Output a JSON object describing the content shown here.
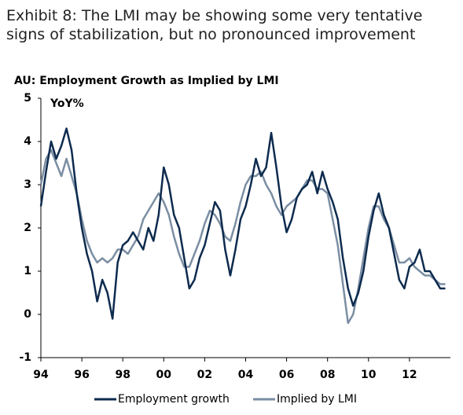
{
  "chart_data": {
    "type": "line",
    "exhibit": "Exhibit 8: The LMI may be showing some very tentative signs of stabilization, but no pronounced improvement",
    "title": "AU: Employment Growth as Implied by LMI",
    "ylabel": "YoY%",
    "x": [
      1994.0,
      1994.25,
      1994.5,
      1994.75,
      1995.0,
      1995.25,
      1995.5,
      1995.75,
      1996.0,
      1996.25,
      1996.5,
      1996.75,
      1997.0,
      1997.25,
      1997.5,
      1997.75,
      1998.0,
      1998.25,
      1998.5,
      1998.75,
      1999.0,
      1999.25,
      1999.5,
      1999.75,
      2000.0,
      2000.25,
      2000.5,
      2000.75,
      2001.0,
      2001.25,
      2001.5,
      2001.75,
      2002.0,
      2002.25,
      2002.5,
      2002.75,
      2003.0,
      2003.25,
      2003.5,
      2003.75,
      2004.0,
      2004.25,
      2004.5,
      2004.75,
      2005.0,
      2005.25,
      2005.5,
      2005.75,
      2006.0,
      2006.25,
      2006.5,
      2006.75,
      2007.0,
      2007.25,
      2007.5,
      2007.75,
      2008.0,
      2008.25,
      2008.5,
      2008.75,
      2009.0,
      2009.25,
      2009.5,
      2009.75,
      2010.0,
      2010.25,
      2010.5,
      2010.75,
      2011.0,
      2011.25,
      2011.5,
      2011.75,
      2012.0,
      2012.25,
      2012.5,
      2012.75,
      2013.0,
      2013.25,
      2013.5,
      2013.75
    ],
    "series": [
      {
        "name": "Employment growth",
        "color": "#0d2b4e",
        "values": [
          2.5,
          3.3,
          4.0,
          3.6,
          3.9,
          4.3,
          3.8,
          2.8,
          2.0,
          1.4,
          1.0,
          0.3,
          0.8,
          0.5,
          -0.1,
          1.2,
          1.6,
          1.7,
          1.9,
          1.7,
          1.5,
          2.0,
          1.7,
          2.3,
          3.4,
          3.0,
          2.3,
          2.0,
          1.3,
          0.6,
          0.8,
          1.3,
          1.6,
          2.1,
          2.6,
          2.4,
          1.5,
          0.9,
          1.5,
          2.2,
          2.5,
          3.0,
          3.6,
          3.2,
          3.4,
          4.2,
          3.4,
          2.5,
          1.9,
          2.2,
          2.7,
          2.9,
          3.0,
          3.3,
          2.8,
          3.3,
          2.9,
          2.6,
          2.2,
          1.3,
          0.6,
          0.2,
          0.5,
          1.0,
          1.8,
          2.4,
          2.8,
          2.3,
          2.0,
          1.4,
          0.8,
          0.6,
          1.1,
          1.2,
          1.5,
          1.0,
          1.0,
          0.8,
          0.6,
          0.6
        ]
      },
      {
        "name": "Implied by LMI",
        "color": "#7b8ea3",
        "values": [
          3.0,
          3.6,
          3.8,
          3.5,
          3.2,
          3.6,
          3.2,
          2.8,
          2.2,
          1.7,
          1.4,
          1.2,
          1.3,
          1.2,
          1.3,
          1.5,
          1.5,
          1.4,
          1.6,
          1.8,
          2.2,
          2.4,
          2.6,
          2.8,
          2.6,
          2.3,
          1.8,
          1.4,
          1.1,
          1.1,
          1.4,
          1.7,
          2.1,
          2.4,
          2.3,
          2.1,
          1.8,
          1.7,
          2.1,
          2.6,
          3.0,
          3.2,
          3.2,
          3.3,
          3.0,
          2.8,
          2.5,
          2.3,
          2.5,
          2.6,
          2.7,
          2.9,
          3.1,
          3.1,
          2.9,
          2.9,
          2.8,
          2.2,
          1.6,
          0.7,
          -0.2,
          0.0,
          0.6,
          1.3,
          2.0,
          2.5,
          2.5,
          2.2,
          2.0,
          1.6,
          1.2,
          1.2,
          1.3,
          1.1,
          1.0,
          0.9,
          0.9,
          0.8,
          0.7,
          0.7
        ]
      }
    ],
    "xlim": [
      1994,
      2014
    ],
    "xticks": [
      {
        "value": 1994,
        "label": "94"
      },
      {
        "value": 1996,
        "label": "96"
      },
      {
        "value": 1998,
        "label": "98"
      },
      {
        "value": 2000,
        "label": "00"
      },
      {
        "value": 2002,
        "label": "02"
      },
      {
        "value": 2004,
        "label": "04"
      },
      {
        "value": 2006,
        "label": "06"
      },
      {
        "value": 2008,
        "label": "08"
      },
      {
        "value": 2010,
        "label": "10"
      },
      {
        "value": 2012,
        "label": "12"
      }
    ],
    "ylim": [
      -1,
      5
    ],
    "yticks": [
      -1,
      0,
      1,
      2,
      3,
      4,
      5
    ],
    "grid": false,
    "legend": "bottom"
  }
}
